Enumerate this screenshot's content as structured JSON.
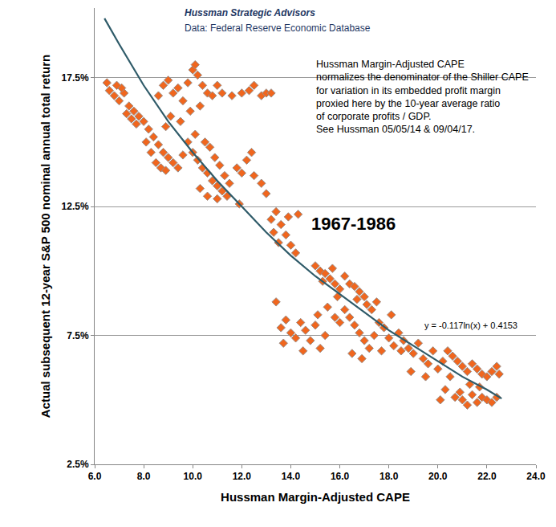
{
  "chart_data": {
    "type": "scatter",
    "title": "Hussman Strategic Advisors",
    "subtitle": "Data: Federal Reserve Economic Database",
    "x_label": "Hussman Margin-Adjusted CAPE",
    "y_label": "Actual subsequent 12-year S&P 500 nominal annual total return",
    "annotations": [
      "Hussman Margin-Adjusted CAPE\nnormalizes the denominator of the Shiller CAPE\nfor variation in its embedded profit margin\nproxied here by the 10-year average ratio\nof corporate profits / GDP.\nSee Hussman 05/05/14 & 09/04/17.",
      "1967-1986",
      "y = -0.117ln(x) + 0.4153"
    ],
    "xlim": [
      6,
      24
    ],
    "xticks": [
      {
        "value": 6,
        "label": "6.0"
      },
      {
        "value": 8,
        "label": "8.0"
      },
      {
        "value": 10,
        "label": "10.0"
      },
      {
        "value": 12,
        "label": "12.0"
      },
      {
        "value": 14,
        "label": "14.0"
      },
      {
        "value": 16,
        "label": "16.0"
      },
      {
        "value": 18,
        "label": "18.0"
      },
      {
        "value": 20,
        "label": "20.0"
      },
      {
        "value": 22,
        "label": "22.0"
      },
      {
        "value": 24,
        "label": "24.0"
      }
    ],
    "ylim": [
      2.5,
      20.2
    ],
    "yticks": [
      {
        "value": 2.5,
        "label": "2.5%"
      },
      {
        "value": 7.5,
        "label": "7.5%"
      },
      {
        "value": 12.5,
        "label": "12.5%"
      },
      {
        "value": 17.5,
        "label": "17.5%"
      }
    ],
    "grid": true,
    "series": [
      {
        "type": "scatter",
        "marker": "diamond",
        "color": "#f0661e",
        "x": [
          6.5,
          6.6,
          6.8,
          7.0,
          7.2,
          7.4,
          7.6,
          7.8,
          8.0,
          7.1,
          7.3,
          7.5,
          7.7,
          6.9,
          8.2,
          8.4,
          8.6,
          8.8,
          9.0,
          9.2,
          9.4,
          9.6,
          8.5,
          8.7,
          8.9,
          8.3,
          8.1,
          8.6,
          8.8,
          9.0,
          9.2,
          9.4,
          9.6,
          9.8,
          10.0,
          10.1,
          10.2,
          10.4,
          10.6,
          9.9,
          10.3,
          9.5,
          9.1,
          8.9,
          10.8,
          11.2,
          11.6,
          12.0,
          12.3,
          12.5,
          12.8,
          13.0,
          13.2,
          11.0,
          9.8,
          10.0,
          10.2,
          10.4,
          10.6,
          10.8,
          11.0,
          11.2,
          11.4,
          10.1,
          10.5,
          10.7,
          10.9,
          11.1,
          11.3,
          11.5,
          10.3,
          10.6,
          11.0,
          11.8,
          12.0,
          12.2,
          12.5,
          12.8,
          13.0,
          11.9,
          12.4,
          13.2,
          13.4,
          13.6,
          13.8,
          14.0,
          14.2,
          13.5,
          13.9,
          14.3,
          13.3,
          13.4,
          13.6,
          13.8,
          14.0,
          14.2,
          14.4,
          14.6,
          14.8,
          15.0,
          15.2,
          15.4,
          15.1,
          14.5,
          13.7,
          15.0,
          15.2,
          15.4,
          15.6,
          15.8,
          16.0,
          15.3,
          15.7,
          16.2,
          15.9,
          16.4,
          16.6,
          16.8,
          17.0,
          15.5,
          15.8,
          16.0,
          16.2,
          16.4,
          16.6,
          16.8,
          17.0,
          17.2,
          17.4,
          17.6,
          17.8,
          18.0,
          18.2,
          18.4,
          16.5,
          16.9,
          17.3,
          17.5,
          17.1,
          16.7,
          18.1,
          18.5,
          17.7,
          18.6,
          18.8,
          19.0,
          19.2,
          19.4,
          19.6,
          19.8,
          20.0,
          18.9,
          19.5,
          20.2,
          20.4,
          20.6,
          20.8,
          21.0,
          21.2,
          21.4,
          21.6,
          21.8,
          22.0,
          22.2,
          22.4,
          22.5,
          20.3,
          20.5,
          20.9,
          21.0,
          21.2,
          21.4,
          21.6,
          21.8,
          22.0,
          22.2,
          22.4,
          20.1,
          20.7,
          21.3,
          21.7
        ],
        "values": [
          17.3,
          17.0,
          16.8,
          16.6,
          16.9,
          16.4,
          16.2,
          16.0,
          15.8,
          17.1,
          16.1,
          15.9,
          15.7,
          17.2,
          15.5,
          15.2,
          14.9,
          14.6,
          14.4,
          14.2,
          14.0,
          14.5,
          14.2,
          14.0,
          13.9,
          14.6,
          15.0,
          16.8,
          17.2,
          17.4,
          16.9,
          17.1,
          16.6,
          17.3,
          17.8,
          18.0,
          17.6,
          17.2,
          16.9,
          16.2,
          16.4,
          15.8,
          16.0,
          15.6,
          16.8,
          16.9,
          16.8,
          16.9,
          17.0,
          17.2,
          16.8,
          16.9,
          16.9,
          17.2,
          15.0,
          14.6,
          14.3,
          14.0,
          13.8,
          13.5,
          13.3,
          13.1,
          12.9,
          15.3,
          15.0,
          14.8,
          14.4,
          14.1,
          13.7,
          13.4,
          13.2,
          12.9,
          12.8,
          14.0,
          13.8,
          14.3,
          13.7,
          13.4,
          13.0,
          12.6,
          14.6,
          12.0,
          12.3,
          11.8,
          11.4,
          11.0,
          10.7,
          11.1,
          12.1,
          12.2,
          11.5,
          8.8,
          7.8,
          8.1,
          7.6,
          7.4,
          8.0,
          7.7,
          7.3,
          7.9,
          7.0,
          7.5,
          8.3,
          6.9,
          7.2,
          10.2,
          10.0,
          9.9,
          9.7,
          9.5,
          9.3,
          9.6,
          10.1,
          9.8,
          9.0,
          9.5,
          9.4,
          9.2,
          9.0,
          8.6,
          8.2,
          8.0,
          8.5,
          8.2,
          7.9,
          7.6,
          7.3,
          7.0,
          7.5,
          8.0,
          7.8,
          7.4,
          7.1,
          7.6,
          6.8,
          6.6,
          8.5,
          8.8,
          8.7,
          8.9,
          8.3,
          6.9,
          6.9,
          7.3,
          7.0,
          6.8,
          7.2,
          6.6,
          6.4,
          6.9,
          6.2,
          6.1,
          5.9,
          6.5,
          6.9,
          6.7,
          6.5,
          6.3,
          6.1,
          6.4,
          6.2,
          6.0,
          5.9,
          6.1,
          6.3,
          6.0,
          5.4,
          5.9,
          5.3,
          5.0,
          4.8,
          5.2,
          4.9,
          5.1,
          5.0,
          4.9,
          5.1,
          5.0,
          5.1,
          5.6,
          5.5
        ]
      },
      {
        "type": "line",
        "line_style": "solid",
        "color": "#2f5b69",
        "x": [
          6.4,
          7,
          8,
          9,
          10,
          11,
          12,
          13,
          14,
          15,
          16,
          17,
          18,
          19,
          20,
          21,
          22,
          22.6
        ],
        "values": [
          19.8,
          18.8,
          17.2,
          15.8,
          14.6,
          13.5,
          12.5,
          11.5,
          10.6,
          9.8,
          9.1,
          8.4,
          7.7,
          7.1,
          6.5,
          5.9,
          5.4,
          5.05
        ]
      }
    ]
  }
}
